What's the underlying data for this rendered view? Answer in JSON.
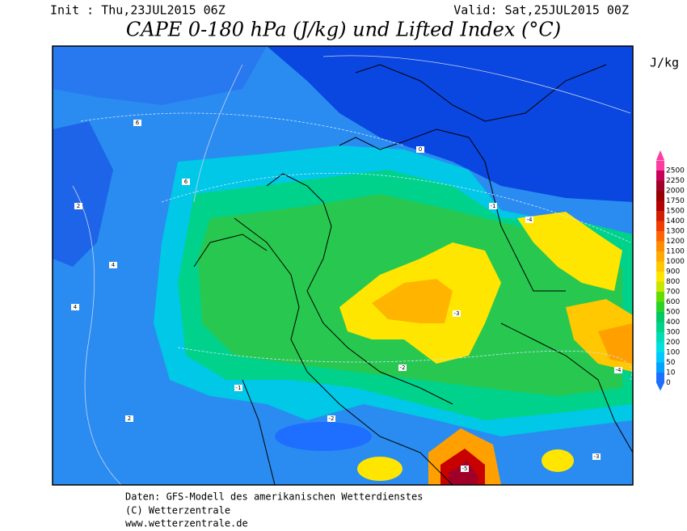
{
  "header": {
    "init": "Init : Thu,23JUL2015 06Z",
    "valid": "Valid: Sat,25JUL2015 00Z",
    "title": "CAPE 0-180 hPa (J/kg) und Lifted Index (°C)"
  },
  "legend": {
    "unit": "J/kg",
    "items": [
      {
        "label": "2500",
        "color": "#ff3ca0"
      },
      {
        "label": "2250",
        "color": "#c8005a"
      },
      {
        "label": "2000",
        "color": "#a00028"
      },
      {
        "label": "1750",
        "color": "#960000"
      },
      {
        "label": "1500",
        "color": "#b40000"
      },
      {
        "label": "1400",
        "color": "#d21e00"
      },
      {
        "label": "1300",
        "color": "#f03c00"
      },
      {
        "label": "1200",
        "color": "#ff6400"
      },
      {
        "label": "1100",
        "color": "#ff8c00"
      },
      {
        "label": "1000",
        "color": "#ffaa00"
      },
      {
        "label": "900",
        "color": "#ffc800"
      },
      {
        "label": "800",
        "color": "#ffe600"
      },
      {
        "label": "700",
        "color": "#c8e600"
      },
      {
        "label": "600",
        "color": "#64dc00"
      },
      {
        "label": "500",
        "color": "#28d228"
      },
      {
        "label": "400",
        "color": "#00c864"
      },
      {
        "label": "300",
        "color": "#00d28c"
      },
      {
        "label": "200",
        "color": "#00dcb4"
      },
      {
        "label": "100",
        "color": "#00e0e0"
      },
      {
        "label": "50",
        "color": "#00c8ff"
      },
      {
        "label": "10",
        "color": "#00a0ff"
      },
      {
        "label": "0",
        "color": "#1e6eff"
      }
    ]
  },
  "map": {
    "contour_labels": [
      "-4",
      "-3",
      "-2",
      "-1",
      "0",
      "2",
      "4",
      "6",
      "-5",
      "-2",
      "-1",
      "2",
      "4",
      "-3",
      "-4",
      "6"
    ]
  },
  "footer": {
    "line1": "Daten: GFS-Modell des amerikanischen Wetterdienstes",
    "line2": "(C) Wetterzentrale",
    "line3": "www.wetterzentrale.de"
  }
}
